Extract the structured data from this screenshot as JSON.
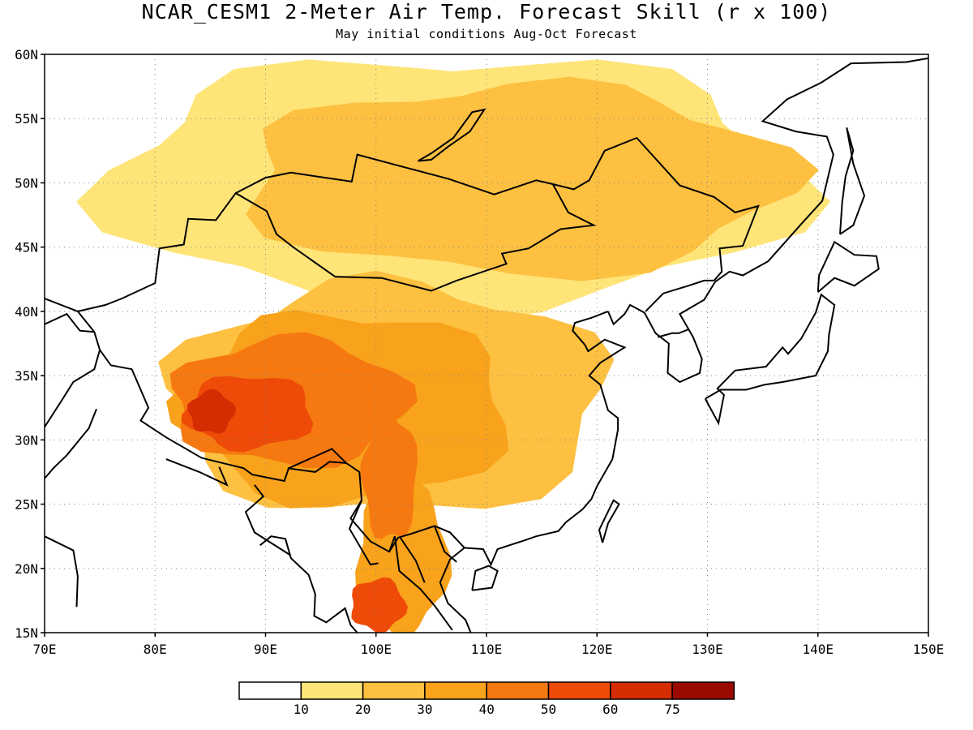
{
  "title": "NCAR_CESM1 2-Meter Air Temp. Forecast Skill (r x 100)",
  "subtitle": "May initial conditions  Aug-Oct Forecast",
  "map": {
    "lon_range": [
      70,
      150
    ],
    "lat_range": [
      15,
      60
    ],
    "grid": true,
    "lat_ticks": [
      "15N",
      "20N",
      "25N",
      "30N",
      "35N",
      "40N",
      "45N",
      "50N",
      "55N",
      "60N"
    ],
    "lon_ticks": [
      "70E",
      "80E",
      "90E",
      "100E",
      "110E",
      "120E",
      "130E",
      "140E",
      "150E"
    ]
  },
  "legend": {
    "colors": [
      "#ffffff",
      "#ffe478",
      "#fdc040",
      "#f9a21b",
      "#f57910",
      "#ee4b08",
      "#d52c02",
      "#9a0a00"
    ],
    "labels": [
      "10",
      "20",
      "30",
      "40",
      "50",
      "60",
      "75"
    ]
  },
  "skill_regions": [
    {
      "level": 1,
      "lon_center": 107,
      "lat_center": 51,
      "lon_radius": 38,
      "lat_radius": 12
    },
    {
      "level": 2,
      "lon_center": 112,
      "lat_center": 51,
      "lon_radius": 30,
      "lat_radius": 9
    },
    {
      "level": 2,
      "lon_center": 100,
      "lat_center": 34,
      "lon_radius": 24,
      "lat_radius": 11
    },
    {
      "level": 3,
      "lon_center": 96,
      "lat_center": 33,
      "lon_radius": 18,
      "lat_radius": 9
    },
    {
      "level": 3,
      "lon_center": 102,
      "lat_center": 21,
      "lon_radius": 5,
      "lat_radius": 7
    },
    {
      "level": 4,
      "lon_center": 91,
      "lat_center": 33,
      "lon_radius": 13,
      "lat_radius": 6
    },
    {
      "level": 4,
      "lon_center": 101,
      "lat_center": 27,
      "lon_radius": 3,
      "lat_radius": 6
    },
    {
      "level": 5,
      "lon_center": 88,
      "lat_center": 32,
      "lon_radius": 7,
      "lat_radius": 3.5
    },
    {
      "level": 5,
      "lon_center": 100,
      "lat_center": 17,
      "lon_radius": 3,
      "lat_radius": 2.5
    },
    {
      "level": 6,
      "lon_center": 85,
      "lat_center": 32,
      "lon_radius": 2.5,
      "lat_radius": 2
    }
  ]
}
